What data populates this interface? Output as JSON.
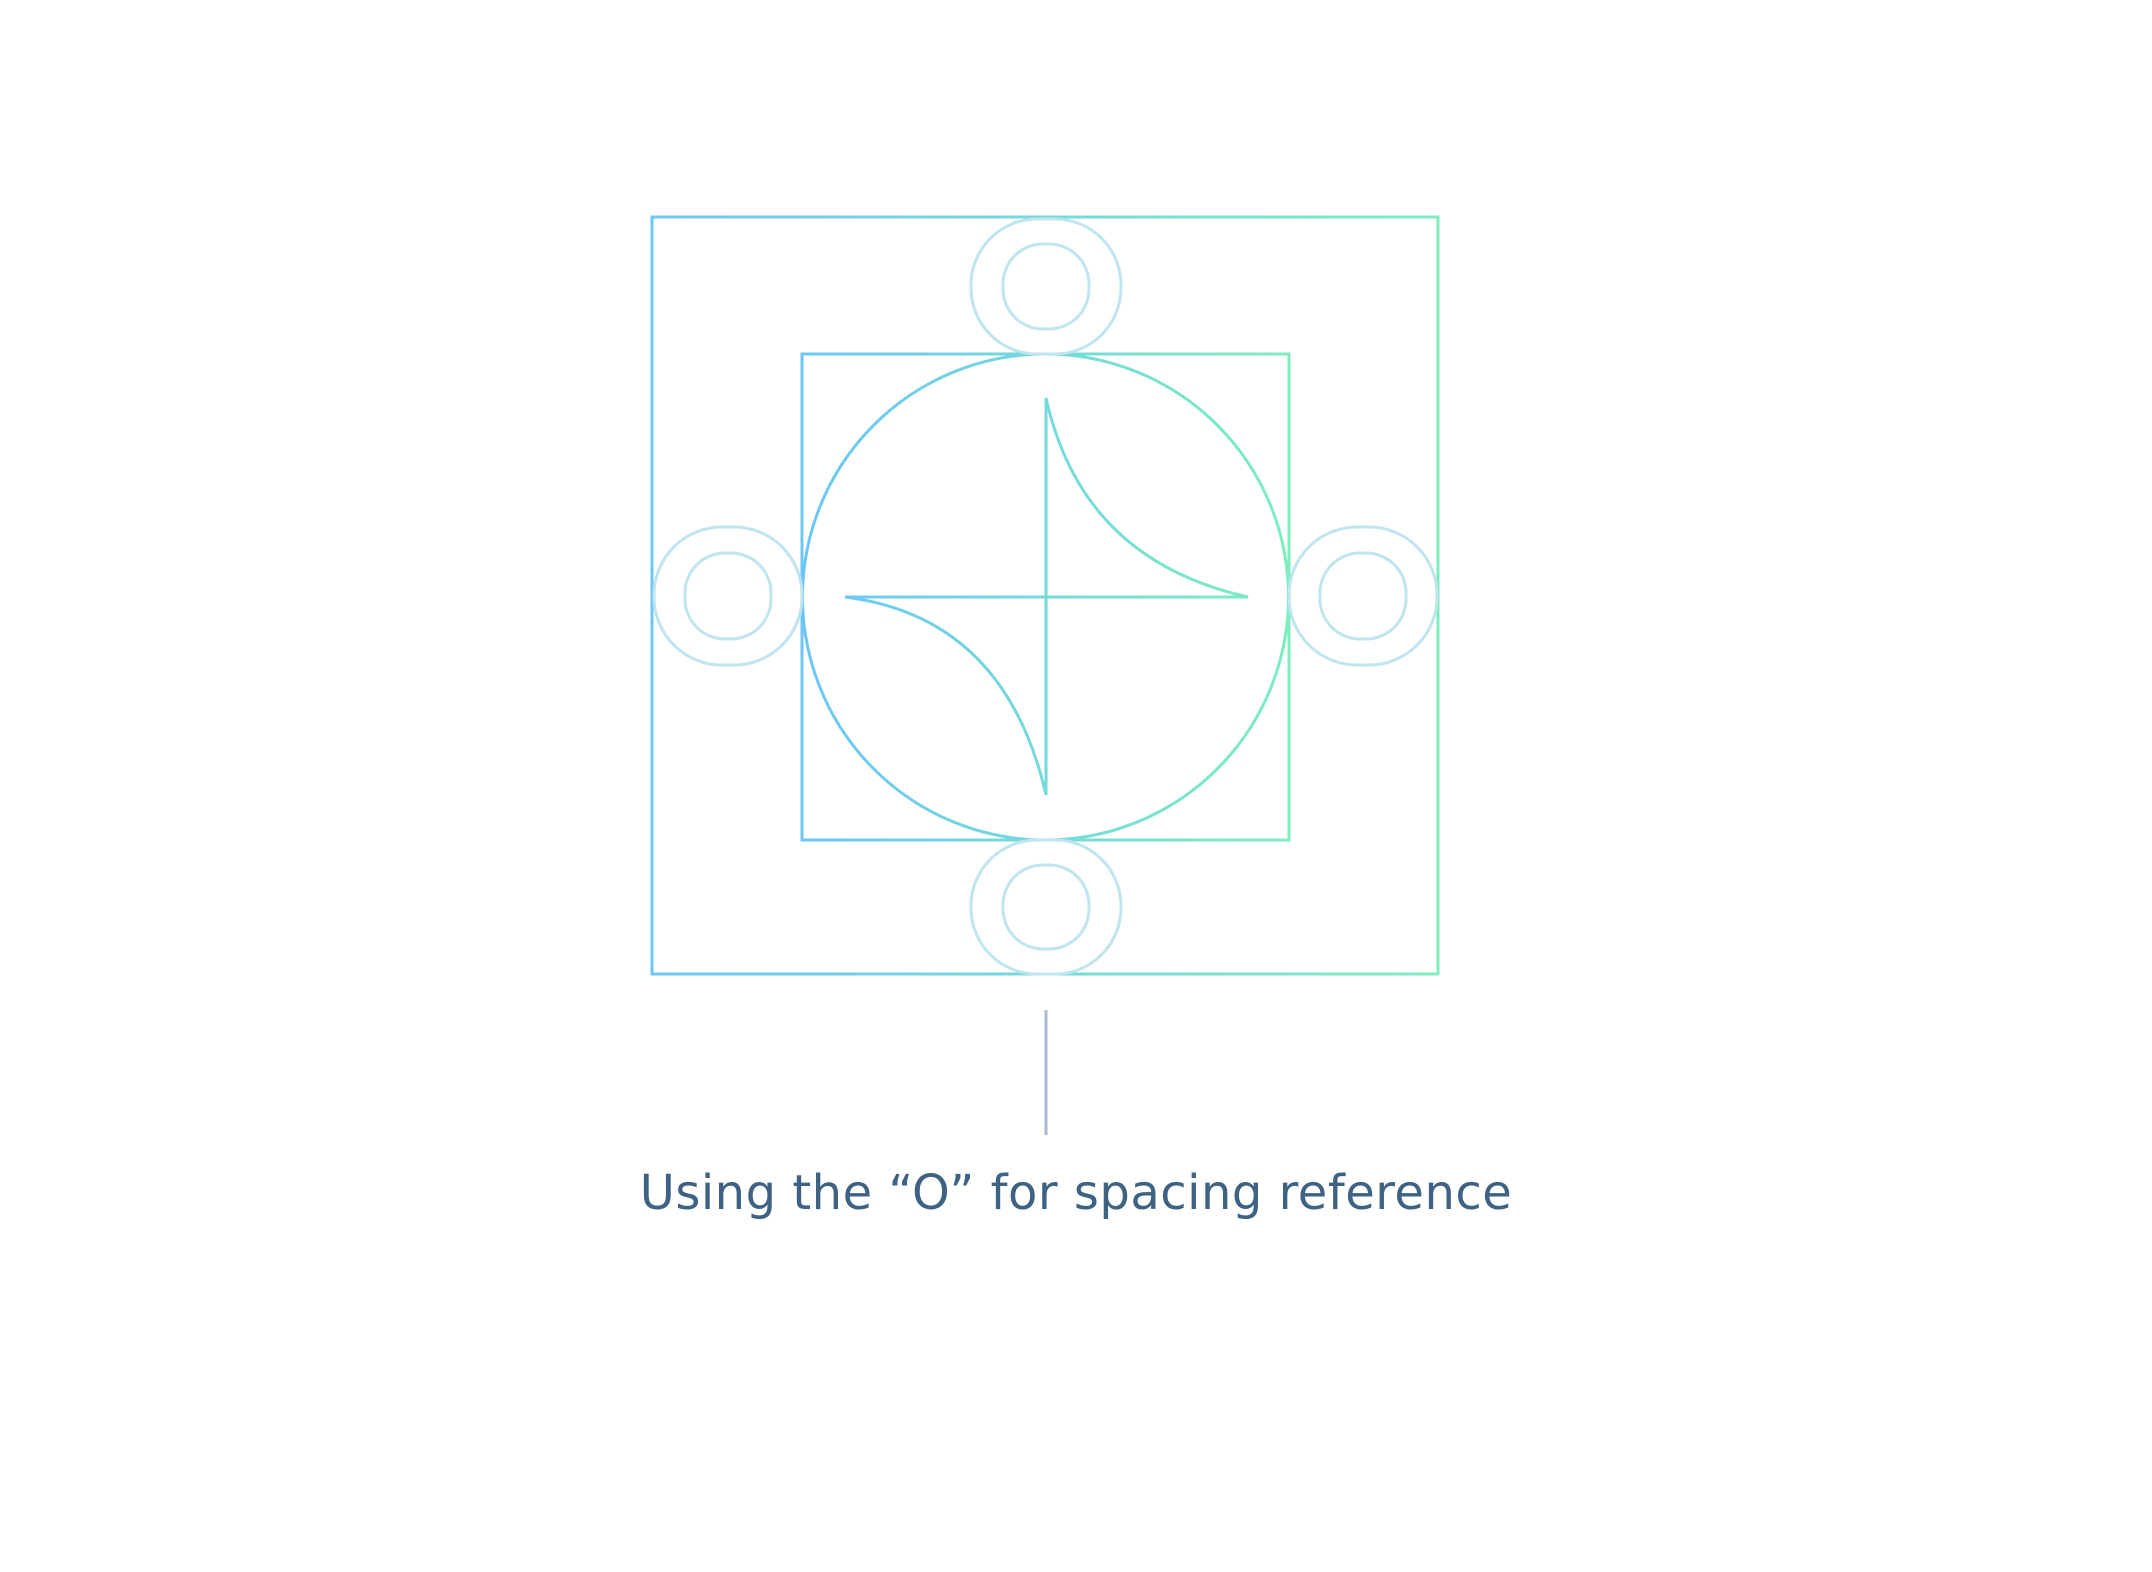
{
  "caption": "Using the “O” for spacing reference",
  "reference_glyph": "O",
  "colors": {
    "gradient_start": "#6DC6F5",
    "gradient_end": "#7EEDC0",
    "glyph_outline": "#BFE5EE",
    "connector": "#A9B9D6",
    "caption_text": "#3E6283",
    "background": "#FFFFFF"
  },
  "icons": {
    "logo_mark": "four-point-star-in-circle-icon",
    "spacing_glyph": "letter-o-outline-icon"
  }
}
